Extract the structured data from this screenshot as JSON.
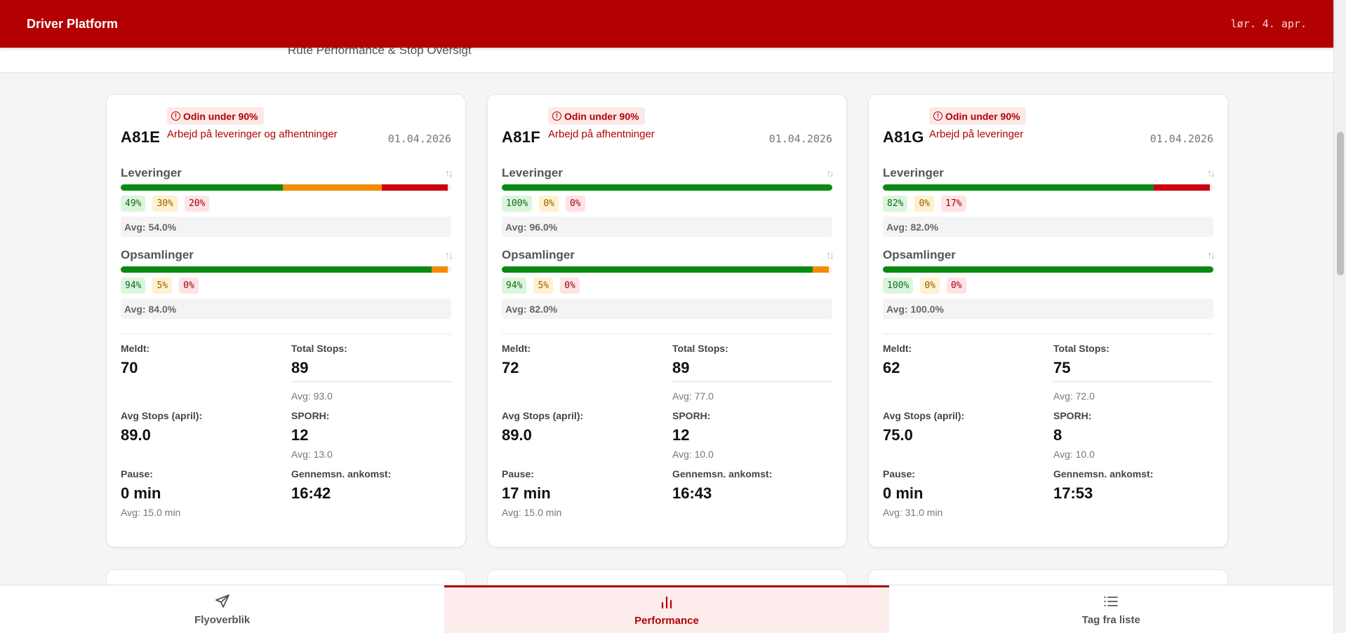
{
  "header": {
    "app_title": "Driver Platform",
    "date": "lør. 4. apr.",
    "subtitle": "Rute Performance & Stop Oversigt"
  },
  "colors": {
    "brand": "#b30000",
    "green": "#0a8a12",
    "orange": "#f38b00",
    "red": "#cc0010"
  },
  "cards": [
    {
      "route": "A81E",
      "badge": "Odin under 90%",
      "note": "Arbejd på leveringer og afhentninger",
      "date": "01.04.2026",
      "leveringer": {
        "title": "Leveringer",
        "green": 49,
        "orange": 30,
        "red": 20,
        "green_label": "49%",
        "orange_label": "30%",
        "red_label": "20%",
        "avg": "Avg: 54.0%"
      },
      "opsamlinger": {
        "title": "Opsamlinger",
        "green": 94,
        "orange": 5,
        "red": 0,
        "green_label": "94%",
        "orange_label": "5%",
        "red_label": "0%",
        "avg": "Avg: 84.0%"
      },
      "meldt_label": "Meldt:",
      "meldt": "70",
      "total_label": "Total Stops:",
      "total": "89",
      "total_avg": "Avg: 93.0",
      "avgstops_label": "Avg Stops (april):",
      "avgstops": "89.0",
      "sporh_label": "SPORH:",
      "sporh": "12",
      "sporh_avg": "Avg: 13.0",
      "pause_label": "Pause:",
      "pause": "0 min",
      "pause_avg": "Avg: 15.0 min",
      "ankomst_label": "Gennemsn. ankomst:",
      "ankomst": "16:42"
    },
    {
      "route": "A81F",
      "badge": "Odin under 90%",
      "note": "Arbejd på afhentninger",
      "date": "01.04.2026",
      "leveringer": {
        "title": "Leveringer",
        "green": 100,
        "orange": 0,
        "red": 0,
        "green_label": "100%",
        "orange_label": "0%",
        "red_label": "0%",
        "avg": "Avg: 96.0%"
      },
      "opsamlinger": {
        "title": "Opsamlinger",
        "green": 94,
        "orange": 5,
        "red": 0,
        "green_label": "94%",
        "orange_label": "5%",
        "red_label": "0%",
        "avg": "Avg: 82.0%"
      },
      "meldt_label": "Meldt:",
      "meldt": "72",
      "total_label": "Total Stops:",
      "total": "89",
      "total_avg": "Avg: 77.0",
      "avgstops_label": "Avg Stops (april):",
      "avgstops": "89.0",
      "sporh_label": "SPORH:",
      "sporh": "12",
      "sporh_avg": "Avg: 10.0",
      "pause_label": "Pause:",
      "pause": "17 min",
      "pause_avg": "Avg: 15.0 min",
      "ankomst_label": "Gennemsn. ankomst:",
      "ankomst": "16:43"
    },
    {
      "route": "A81G",
      "badge": "Odin under 90%",
      "note": "Arbejd på leveringer",
      "date": "01.04.2026",
      "leveringer": {
        "title": "Leveringer",
        "green": 82,
        "orange": 0,
        "red": 17,
        "green_label": "82%",
        "orange_label": "0%",
        "red_label": "17%",
        "avg": "Avg: 82.0%"
      },
      "opsamlinger": {
        "title": "Opsamlinger",
        "green": 100,
        "orange": 0,
        "red": 0,
        "green_label": "100%",
        "orange_label": "0%",
        "red_label": "0%",
        "avg": "Avg: 100.0%"
      },
      "meldt_label": "Meldt:",
      "meldt": "62",
      "total_label": "Total Stops:",
      "total": "75",
      "total_avg": "Avg: 72.0",
      "avgstops_label": "Avg Stops (april):",
      "avgstops": "75.0",
      "sporh_label": "SPORH:",
      "sporh": "8",
      "sporh_avg": "Avg: 10.0",
      "pause_label": "Pause:",
      "pause": "0 min",
      "pause_avg": "Avg: 31.0 min",
      "ankomst_label": "Gennemsn. ankomst:",
      "ankomst": "17:53"
    }
  ],
  "nav": [
    {
      "label": "Flyoverblik",
      "icon": "plane-icon",
      "active": false
    },
    {
      "label": "Performance",
      "icon": "bar-chart-icon",
      "active": true
    },
    {
      "label": "Tag fra liste",
      "icon": "list-icon",
      "active": false
    }
  ]
}
